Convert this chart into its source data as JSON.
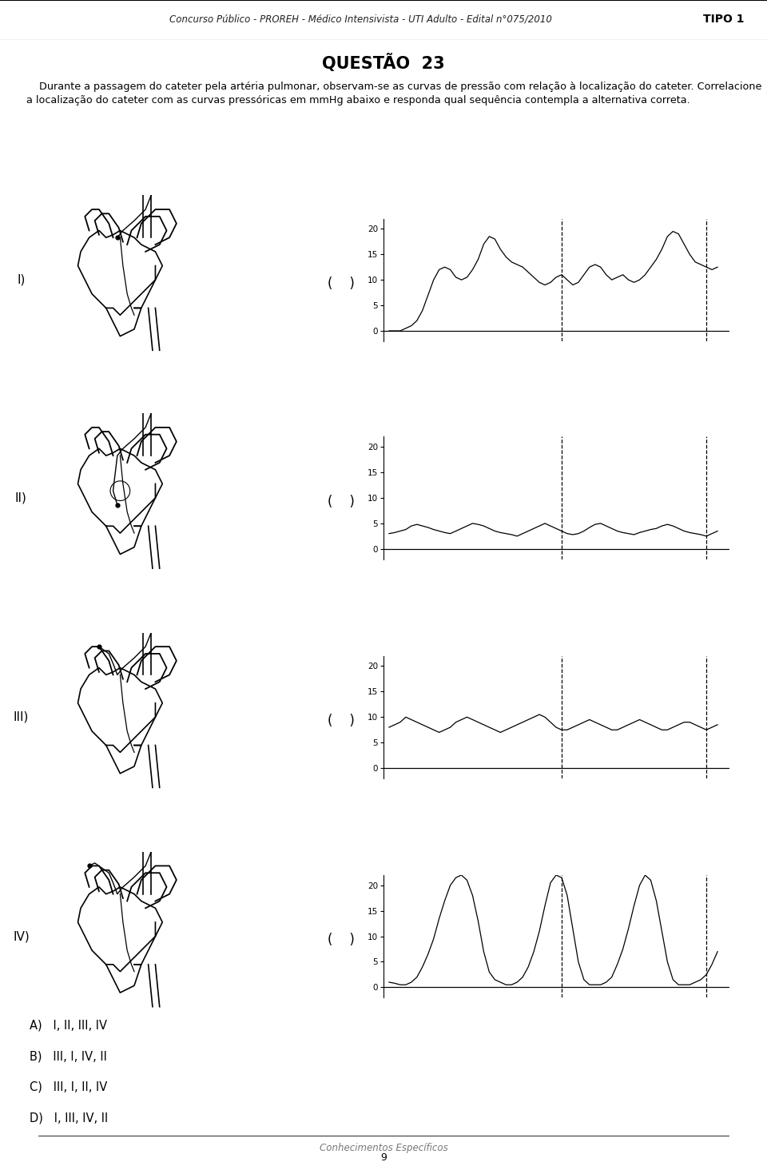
{
  "title_header": "Concurso Público - PROREH - Médico Intensivista - UTI Adulto - Edital n°075/2010",
  "tipo": "TIPO 1",
  "questao_title": "QUESTÃO  23",
  "paragraph1": "    Durante a passagem do cateter pela artéria pulmonar, observam-se as curvas de pressão com relação à localização do cateter. Correlacione a localização do cateter com as curvas pressóricas em mmHg abaixo e responda qual sequência contempla a alternativa correta.",
  "labels_left": [
    "I)",
    "II)",
    "III)",
    "IV)"
  ],
  "options": [
    "A)   I, II, III, IV",
    "B)   III, I, IV, II",
    "C)   III, I, II, IV",
    "D)   I, III, IV, II"
  ],
  "footer_center": "Conhecimentos Específicos",
  "footer_num": "9",
  "bg_color": "#ffffff",
  "chart_yticks": [
    0,
    5,
    10,
    15,
    20
  ],
  "charts": [
    {
      "id": "I",
      "x": [
        0.0,
        0.05,
        0.1,
        0.15,
        0.2,
        0.25,
        0.3,
        0.35,
        0.4,
        0.45,
        0.5,
        0.55,
        0.6,
        0.65,
        0.7,
        0.75,
        0.8,
        0.85,
        0.9,
        0.95,
        1.0,
        1.05,
        1.1,
        1.15,
        1.2,
        1.25,
        1.3,
        1.35,
        1.4,
        1.45,
        1.5,
        1.55,
        1.6,
        1.65,
        1.7,
        1.75,
        1.8,
        1.85,
        1.9,
        1.95,
        2.0,
        2.05,
        2.1,
        2.15,
        2.2,
        2.25,
        2.3,
        2.35,
        2.4,
        2.45,
        2.5,
        2.55,
        2.6,
        2.65,
        2.7,
        2.75,
        2.8,
        2.85,
        2.9,
        2.95
      ],
      "y": [
        0.0,
        0.0,
        0.0,
        0.5,
        1.0,
        2.0,
        4.0,
        7.0,
        10.0,
        12.0,
        12.5,
        12.0,
        10.5,
        10.0,
        10.5,
        12.0,
        14.0,
        17.0,
        18.5,
        18.0,
        16.0,
        14.5,
        13.5,
        13.0,
        12.5,
        11.5,
        10.5,
        9.5,
        9.0,
        9.5,
        10.5,
        11.0,
        10.0,
        9.0,
        9.5,
        11.0,
        12.5,
        13.0,
        12.5,
        11.0,
        10.0,
        10.5,
        11.0,
        10.0,
        9.5,
        10.0,
        11.0,
        12.5,
        14.0,
        16.0,
        18.5,
        19.5,
        19.0,
        17.0,
        15.0,
        13.5,
        13.0,
        12.5,
        12.0,
        12.5
      ],
      "vlines": [
        1.55,
        2.85
      ]
    },
    {
      "id": "II",
      "x": [
        0.0,
        0.05,
        0.1,
        0.15,
        0.2,
        0.25,
        0.3,
        0.35,
        0.4,
        0.45,
        0.5,
        0.55,
        0.6,
        0.65,
        0.7,
        0.75,
        0.8,
        0.85,
        0.9,
        0.95,
        1.0,
        1.05,
        1.1,
        1.15,
        1.2,
        1.25,
        1.3,
        1.35,
        1.4,
        1.45,
        1.5,
        1.55,
        1.6,
        1.65,
        1.7,
        1.75,
        1.8,
        1.85,
        1.9,
        1.95,
        2.0,
        2.05,
        2.1,
        2.15,
        2.2,
        2.25,
        2.3,
        2.35,
        2.4,
        2.45,
        2.5,
        2.55,
        2.6,
        2.65,
        2.7,
        2.75,
        2.8,
        2.85,
        2.9,
        2.95
      ],
      "y": [
        3.0,
        3.2,
        3.5,
        3.8,
        4.5,
        4.8,
        4.5,
        4.2,
        3.8,
        3.5,
        3.2,
        3.0,
        3.5,
        4.0,
        4.5,
        5.0,
        4.8,
        4.5,
        4.0,
        3.5,
        3.2,
        3.0,
        2.8,
        2.5,
        3.0,
        3.5,
        4.0,
        4.5,
        5.0,
        4.5,
        4.0,
        3.5,
        3.0,
        2.8,
        3.0,
        3.5,
        4.2,
        4.8,
        5.0,
        4.5,
        4.0,
        3.5,
        3.2,
        3.0,
        2.8,
        3.2,
        3.5,
        3.8,
        4.0,
        4.5,
        4.8,
        4.5,
        4.0,
        3.5,
        3.2,
        3.0,
        2.8,
        2.5,
        3.0,
        3.5
      ],
      "vlines": [
        1.55,
        2.85
      ]
    },
    {
      "id": "III",
      "x": [
        0.0,
        0.05,
        0.1,
        0.15,
        0.2,
        0.25,
        0.3,
        0.35,
        0.4,
        0.45,
        0.5,
        0.55,
        0.6,
        0.65,
        0.7,
        0.75,
        0.8,
        0.85,
        0.9,
        0.95,
        1.0,
        1.05,
        1.1,
        1.15,
        1.2,
        1.25,
        1.3,
        1.35,
        1.4,
        1.45,
        1.5,
        1.55,
        1.6,
        1.65,
        1.7,
        1.75,
        1.8,
        1.85,
        1.9,
        1.95,
        2.0,
        2.05,
        2.1,
        2.15,
        2.2,
        2.25,
        2.3,
        2.35,
        2.4,
        2.45,
        2.5,
        2.55,
        2.6,
        2.65,
        2.7,
        2.75,
        2.8,
        2.85,
        2.9,
        2.95
      ],
      "y": [
        8.0,
        8.5,
        9.0,
        10.0,
        9.5,
        9.0,
        8.5,
        8.0,
        7.5,
        7.0,
        7.5,
        8.0,
        9.0,
        9.5,
        10.0,
        9.5,
        9.0,
        8.5,
        8.0,
        7.5,
        7.0,
        7.5,
        8.0,
        8.5,
        9.0,
        9.5,
        10.0,
        10.5,
        10.0,
        9.0,
        8.0,
        7.5,
        7.5,
        8.0,
        8.5,
        9.0,
        9.5,
        9.0,
        8.5,
        8.0,
        7.5,
        7.5,
        8.0,
        8.5,
        9.0,
        9.5,
        9.0,
        8.5,
        8.0,
        7.5,
        7.5,
        8.0,
        8.5,
        9.0,
        9.0,
        8.5,
        8.0,
        7.5,
        8.0,
        8.5
      ],
      "vlines": [
        1.55,
        2.85
      ]
    },
    {
      "id": "IV",
      "x": [
        0.0,
        0.05,
        0.1,
        0.15,
        0.2,
        0.25,
        0.3,
        0.35,
        0.4,
        0.45,
        0.5,
        0.55,
        0.6,
        0.65,
        0.7,
        0.75,
        0.8,
        0.85,
        0.9,
        0.95,
        1.0,
        1.05,
        1.1,
        1.15,
        1.2,
        1.25,
        1.3,
        1.35,
        1.4,
        1.45,
        1.5,
        1.55,
        1.6,
        1.65,
        1.7,
        1.75,
        1.8,
        1.85,
        1.9,
        1.95,
        2.0,
        2.05,
        2.1,
        2.15,
        2.2,
        2.25,
        2.3,
        2.35,
        2.4,
        2.45,
        2.5,
        2.55,
        2.6,
        2.65,
        2.7,
        2.75,
        2.8,
        2.85,
        2.9,
        2.95
      ],
      "y": [
        1.0,
        0.8,
        0.5,
        0.5,
        1.0,
        2.0,
        4.0,
        6.5,
        9.5,
        13.5,
        17.0,
        20.0,
        21.5,
        22.0,
        21.0,
        18.0,
        13.0,
        7.0,
        3.0,
        1.5,
        1.0,
        0.5,
        0.5,
        1.0,
        2.0,
        4.0,
        7.0,
        11.0,
        16.0,
        20.5,
        22.0,
        21.5,
        18.0,
        11.5,
        5.0,
        1.5,
        0.5,
        0.5,
        0.5,
        1.0,
        2.0,
        4.5,
        7.5,
        11.5,
        16.0,
        20.0,
        22.0,
        21.0,
        17.0,
        11.0,
        5.0,
        1.5,
        0.5,
        0.5,
        0.5,
        1.0,
        1.5,
        2.5,
        4.5,
        7.0
      ],
      "vlines": [
        1.55,
        2.85
      ]
    }
  ]
}
